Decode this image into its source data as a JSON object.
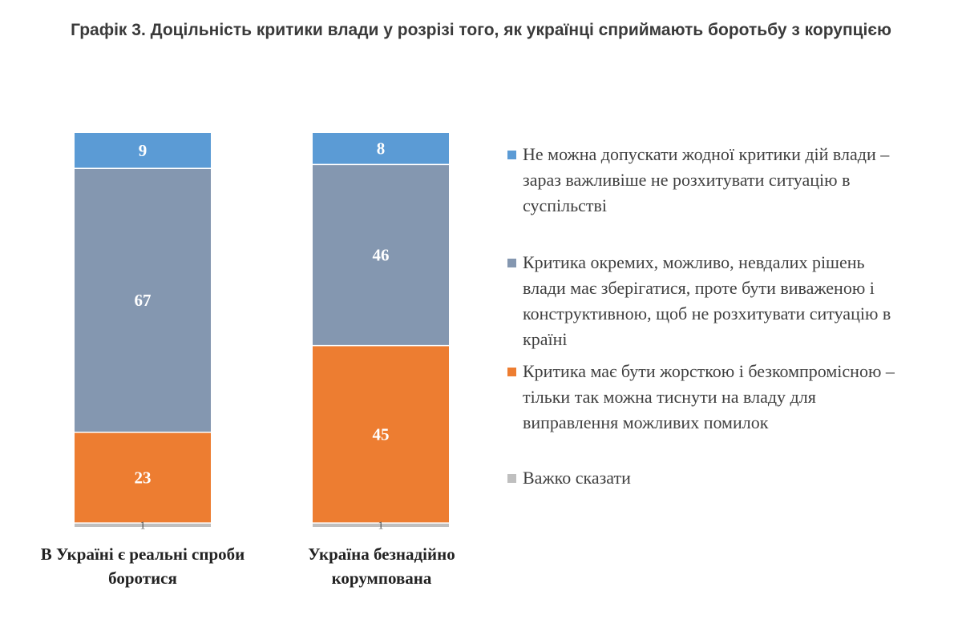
{
  "chart_data": {
    "type": "bar",
    "stacked": true,
    "title": "Графік 3. Доцільність критики влади у розрізі того, як українці сприймають боротьбу з корупцією",
    "categories": [
      "В Україні є реальні спроби боротися",
      "Україна безнадійно корумпована"
    ],
    "series": [
      {
        "name": "Не можна допускати жодної критики дій влади – зараз важливіше не розхитувати ситуацію в суспільстві",
        "values": [
          9,
          8
        ],
        "color": "#5B9BD5"
      },
      {
        "name": "Критика окремих, можливо, невдалих рішень влади має зберігатися, проте бути виваженою і конструктивною, щоб не розхитувати ситуацію в країні",
        "values": [
          67,
          46
        ],
        "color": "#8497B0"
      },
      {
        "name": "Критика має бути жорсткою і безкомпромісною – тільки так можна тиснути на владу для виправлення можливих помилок",
        "values": [
          23,
          45
        ],
        "color": "#ED7D31"
      },
      {
        "name": "Важко сказати",
        "values": [
          1,
          1
        ],
        "color": "#BFBFBF"
      }
    ],
    "ylim": [
      0,
      100
    ],
    "grid": false,
    "legend_position": "right"
  }
}
